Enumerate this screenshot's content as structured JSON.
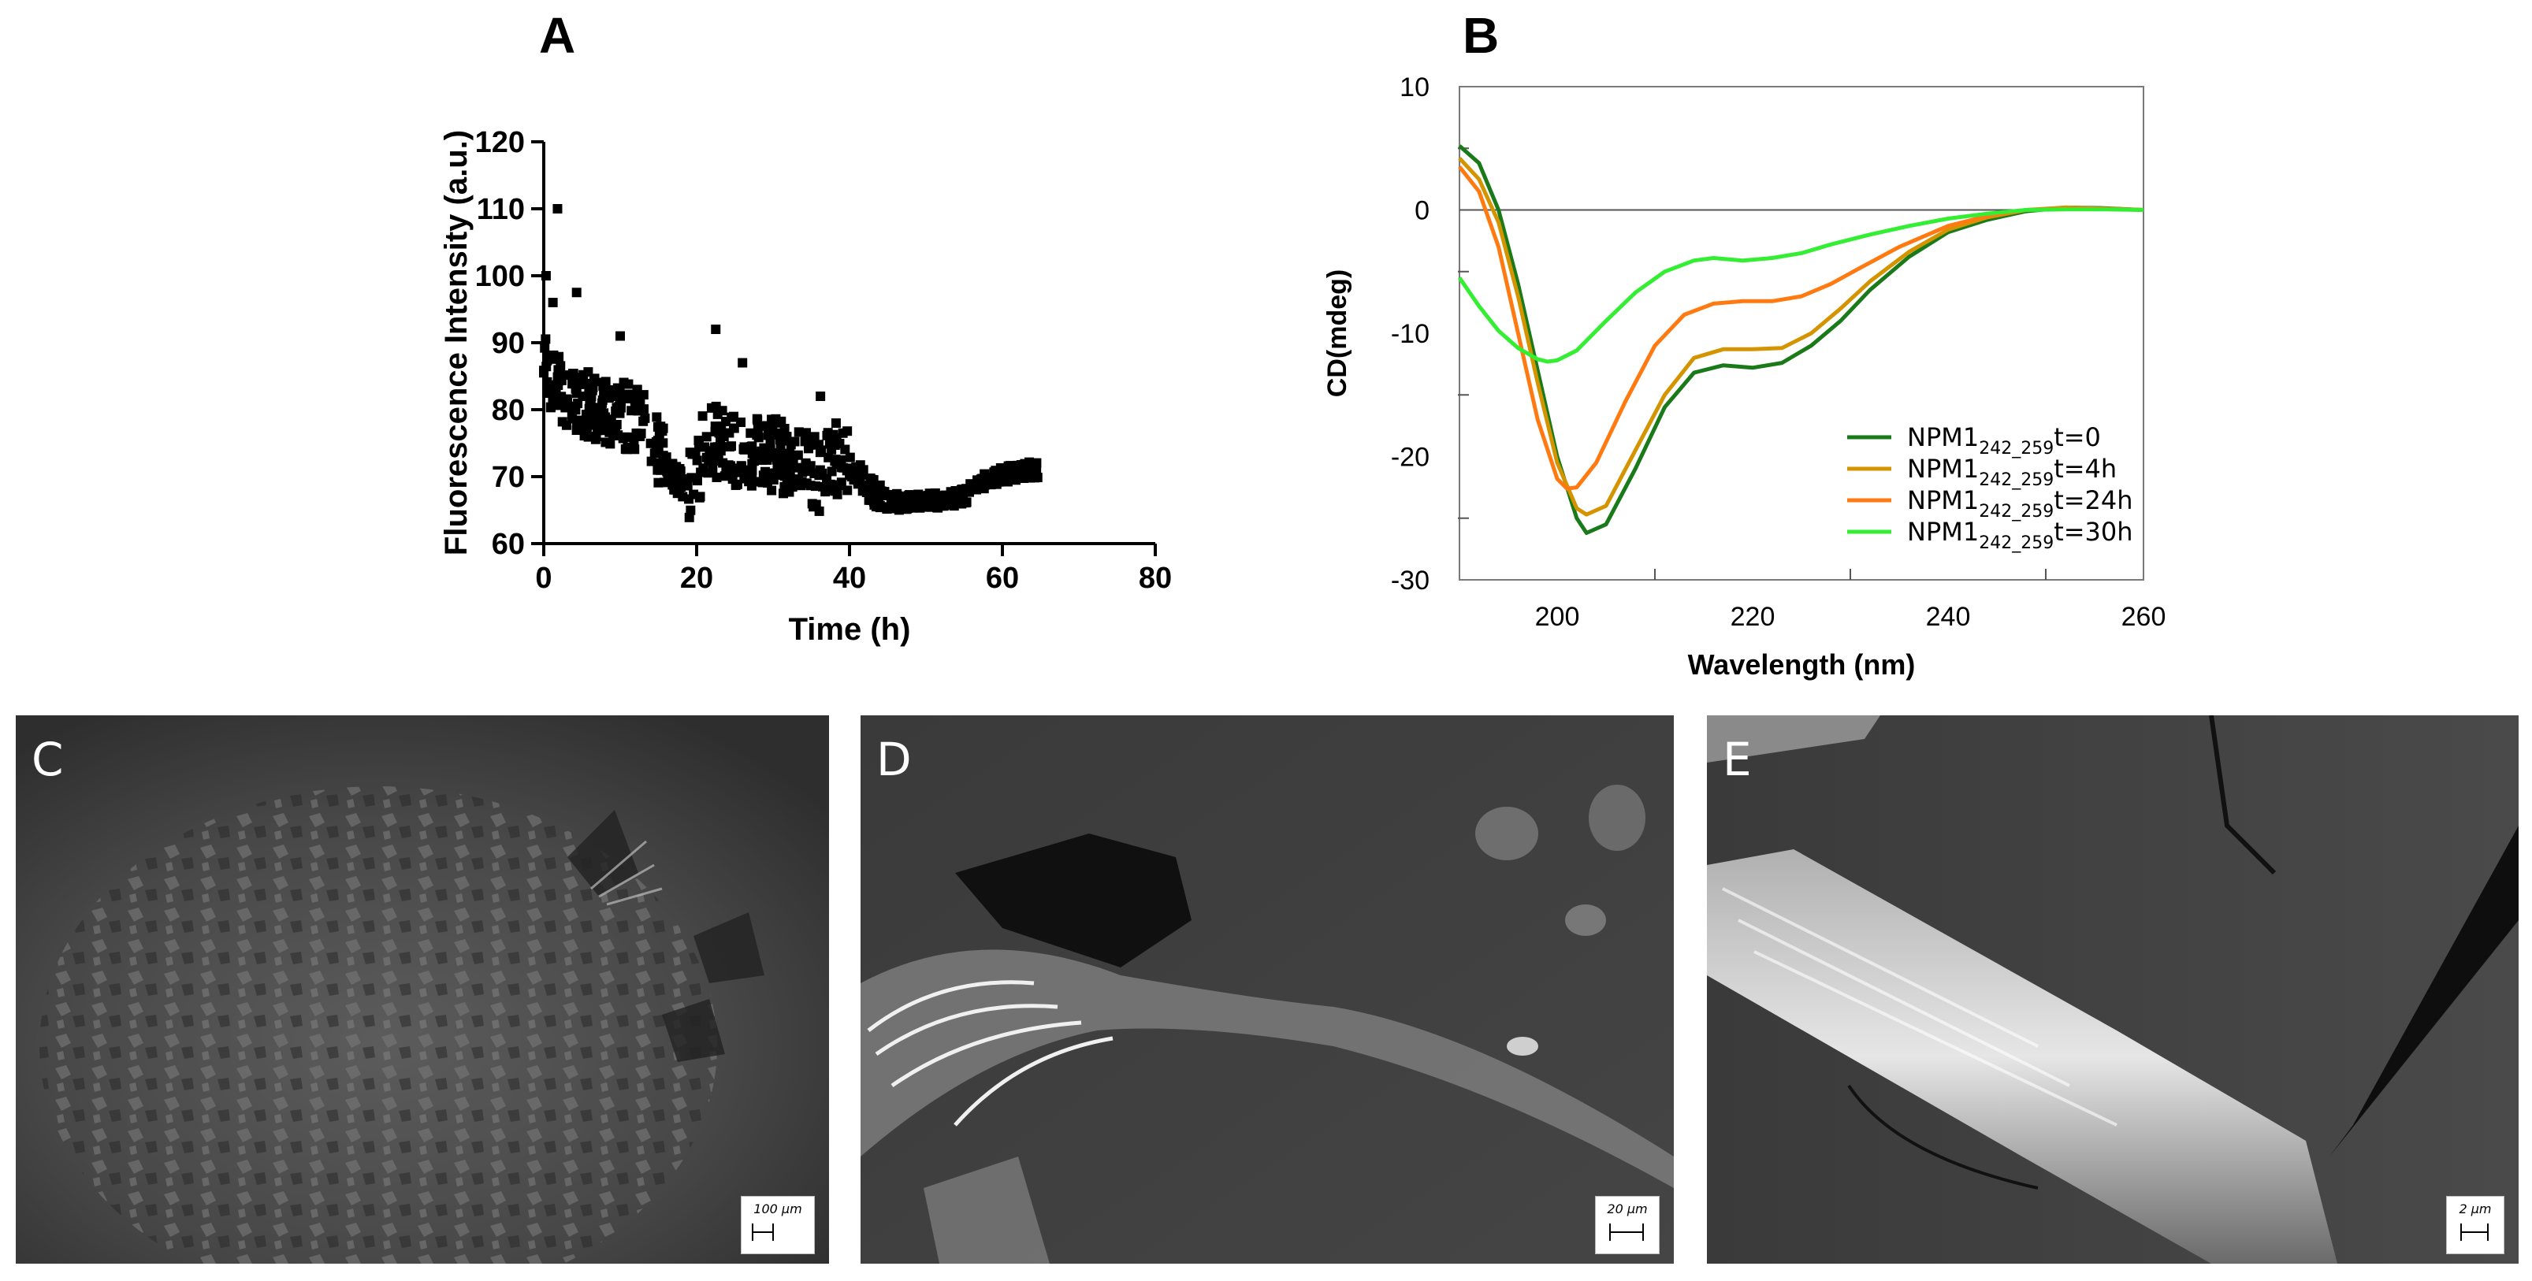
{
  "panel_labels": {
    "a": "A",
    "b": "B"
  },
  "chart_data": [
    {
      "type": "scatter",
      "panel": "A",
      "xlabel": "Time (h)",
      "ylabel": "Fluorescence Intensity (a.u.)",
      "xlim": [
        0,
        80
      ],
      "ylim": [
        60,
        120
      ],
      "xticks": [
        0,
        20,
        40,
        60,
        80
      ],
      "yticks": [
        60,
        70,
        80,
        90,
        100,
        110,
        120
      ],
      "trend": [
        [
          0,
          86
        ],
        [
          1,
          85
        ],
        [
          3,
          82
        ],
        [
          5,
          81
        ],
        [
          8,
          80
        ],
        [
          11,
          79
        ],
        [
          13,
          78
        ],
        [
          15,
          74
        ],
        [
          17,
          70
        ],
        [
          19,
          68
        ],
        [
          20,
          69
        ],
        [
          21,
          76
        ],
        [
          23,
          75
        ],
        [
          25,
          74
        ],
        [
          28,
          74
        ],
        [
          31,
          73
        ],
        [
          34,
          72
        ],
        [
          36,
          70
        ],
        [
          38,
          73
        ],
        [
          40,
          72
        ],
        [
          42,
          69
        ],
        [
          44,
          67
        ],
        [
          47,
          66
        ],
        [
          50,
          66.5
        ],
        [
          53,
          66.5
        ],
        [
          55,
          67
        ],
        [
          57,
          69
        ],
        [
          59,
          70
        ],
        [
          61,
          70.5
        ],
        [
          63,
          71
        ],
        [
          65,
          71
        ]
      ],
      "outliers": [
        [
          1.8,
          110
        ],
        [
          0.3,
          100
        ],
        [
          4.3,
          97.5
        ],
        [
          1.2,
          96
        ],
        [
          10,
          91
        ],
        [
          22.5,
          92
        ],
        [
          26,
          87
        ],
        [
          36.2,
          82
        ]
      ]
    },
    {
      "type": "line",
      "panel": "B",
      "xlabel": "Wavelength (nm)",
      "ylabel": "CD(mdeg)",
      "xlim": [
        190,
        260
      ],
      "ylim": [
        -30,
        10
      ],
      "xticks": [
        200,
        220,
        240,
        260
      ],
      "yticks": [
        -30,
        -20,
        -10,
        0,
        10
      ],
      "series": [
        {
          "name": "NPM1",
          "sub": "242_259",
          "suffix": "t=0",
          "color": "#1a7a1a",
          "points": [
            [
              190,
              5.2
            ],
            [
              192,
              3.8
            ],
            [
              194,
              0
            ],
            [
              196,
              -6
            ],
            [
              198,
              -13
            ],
            [
              200,
              -20
            ],
            [
              202,
              -25
            ],
            [
              203,
              -26.2
            ],
            [
              205,
              -25.5
            ],
            [
              208,
              -21
            ],
            [
              211,
              -16
            ],
            [
              214,
              -13.2
            ],
            [
              217,
              -12.6
            ],
            [
              220,
              -12.8
            ],
            [
              223,
              -12.4
            ],
            [
              226,
              -11
            ],
            [
              229,
              -9
            ],
            [
              232,
              -6.5
            ],
            [
              236,
              -3.8
            ],
            [
              240,
              -1.8
            ],
            [
              244,
              -0.8
            ],
            [
              248,
              -0.1
            ],
            [
              252,
              0.2
            ],
            [
              256,
              0.15
            ],
            [
              260,
              0
            ]
          ]
        },
        {
          "name": "NPM1",
          "sub": "242_259",
          "suffix": "t=4h",
          "color": "#d49400",
          "points": [
            [
              190,
              4.2
            ],
            [
              192,
              2.5
            ],
            [
              194,
              -1
            ],
            [
              196,
              -7
            ],
            [
              198,
              -14
            ],
            [
              200,
              -20.5
            ],
            [
              202,
              -24.2
            ],
            [
              203,
              -24.7
            ],
            [
              205,
              -24
            ],
            [
              208,
              -19.5
            ],
            [
              211,
              -15
            ],
            [
              214,
              -12
            ],
            [
              217,
              -11.3
            ],
            [
              220,
              -11.3
            ],
            [
              223,
              -11.2
            ],
            [
              226,
              -10
            ],
            [
              229,
              -8
            ],
            [
              232,
              -5.8
            ],
            [
              236,
              -3.4
            ],
            [
              240,
              -1.6
            ],
            [
              244,
              -0.6
            ],
            [
              248,
              0
            ],
            [
              252,
              0.2
            ],
            [
              256,
              0.1
            ],
            [
              260,
              0
            ]
          ]
        },
        {
          "name": "NPM1",
          "sub": "242_259",
          "suffix": "t=24h",
          "color": "#ff7a10",
          "points": [
            [
              190,
              3.5
            ],
            [
              192,
              1.5
            ],
            [
              194,
              -3
            ],
            [
              196,
              -10
            ],
            [
              198,
              -17
            ],
            [
              200,
              -21.8
            ],
            [
              201,
              -22.6
            ],
            [
              202,
              -22.5
            ],
            [
              204,
              -20.5
            ],
            [
              207,
              -15.5
            ],
            [
              210,
              -11
            ],
            [
              213,
              -8.5
            ],
            [
              216,
              -7.6
            ],
            [
              219,
              -7.4
            ],
            [
              222,
              -7.4
            ],
            [
              225,
              -7
            ],
            [
              228,
              -6
            ],
            [
              231,
              -4.7
            ],
            [
              235,
              -3
            ],
            [
              240,
              -1.3
            ],
            [
              244,
              -0.5
            ],
            [
              248,
              0
            ],
            [
              252,
              0.1
            ],
            [
              256,
              0.1
            ],
            [
              260,
              0
            ]
          ]
        },
        {
          "name": "NPM1",
          "sub": "242_259",
          "suffix": "t=30h",
          "color": "#33ee33",
          "points": [
            [
              190,
              -5.5
            ],
            [
              192,
              -7.8
            ],
            [
              194,
              -9.8
            ],
            [
              196,
              -11.2
            ],
            [
              198,
              -12.1
            ],
            [
              199,
              -12.3
            ],
            [
              200,
              -12.2
            ],
            [
              202,
              -11.4
            ],
            [
              205,
              -9
            ],
            [
              208,
              -6.7
            ],
            [
              211,
              -5
            ],
            [
              214,
              -4.1
            ],
            [
              216,
              -3.9
            ],
            [
              219,
              -4.1
            ],
            [
              222,
              -3.9
            ],
            [
              225,
              -3.5
            ],
            [
              228,
              -2.8
            ],
            [
              232,
              -2
            ],
            [
              236,
              -1.3
            ],
            [
              240,
              -0.7
            ],
            [
              244,
              -0.3
            ],
            [
              248,
              0
            ],
            [
              252,
              0.05
            ],
            [
              256,
              0.05
            ],
            [
              260,
              0
            ]
          ]
        }
      ]
    }
  ],
  "micrographs": [
    {
      "label": "C",
      "scale": "100 μm"
    },
    {
      "label": "D",
      "scale": "20 μm"
    },
    {
      "label": "E",
      "scale": "2 μm"
    }
  ]
}
